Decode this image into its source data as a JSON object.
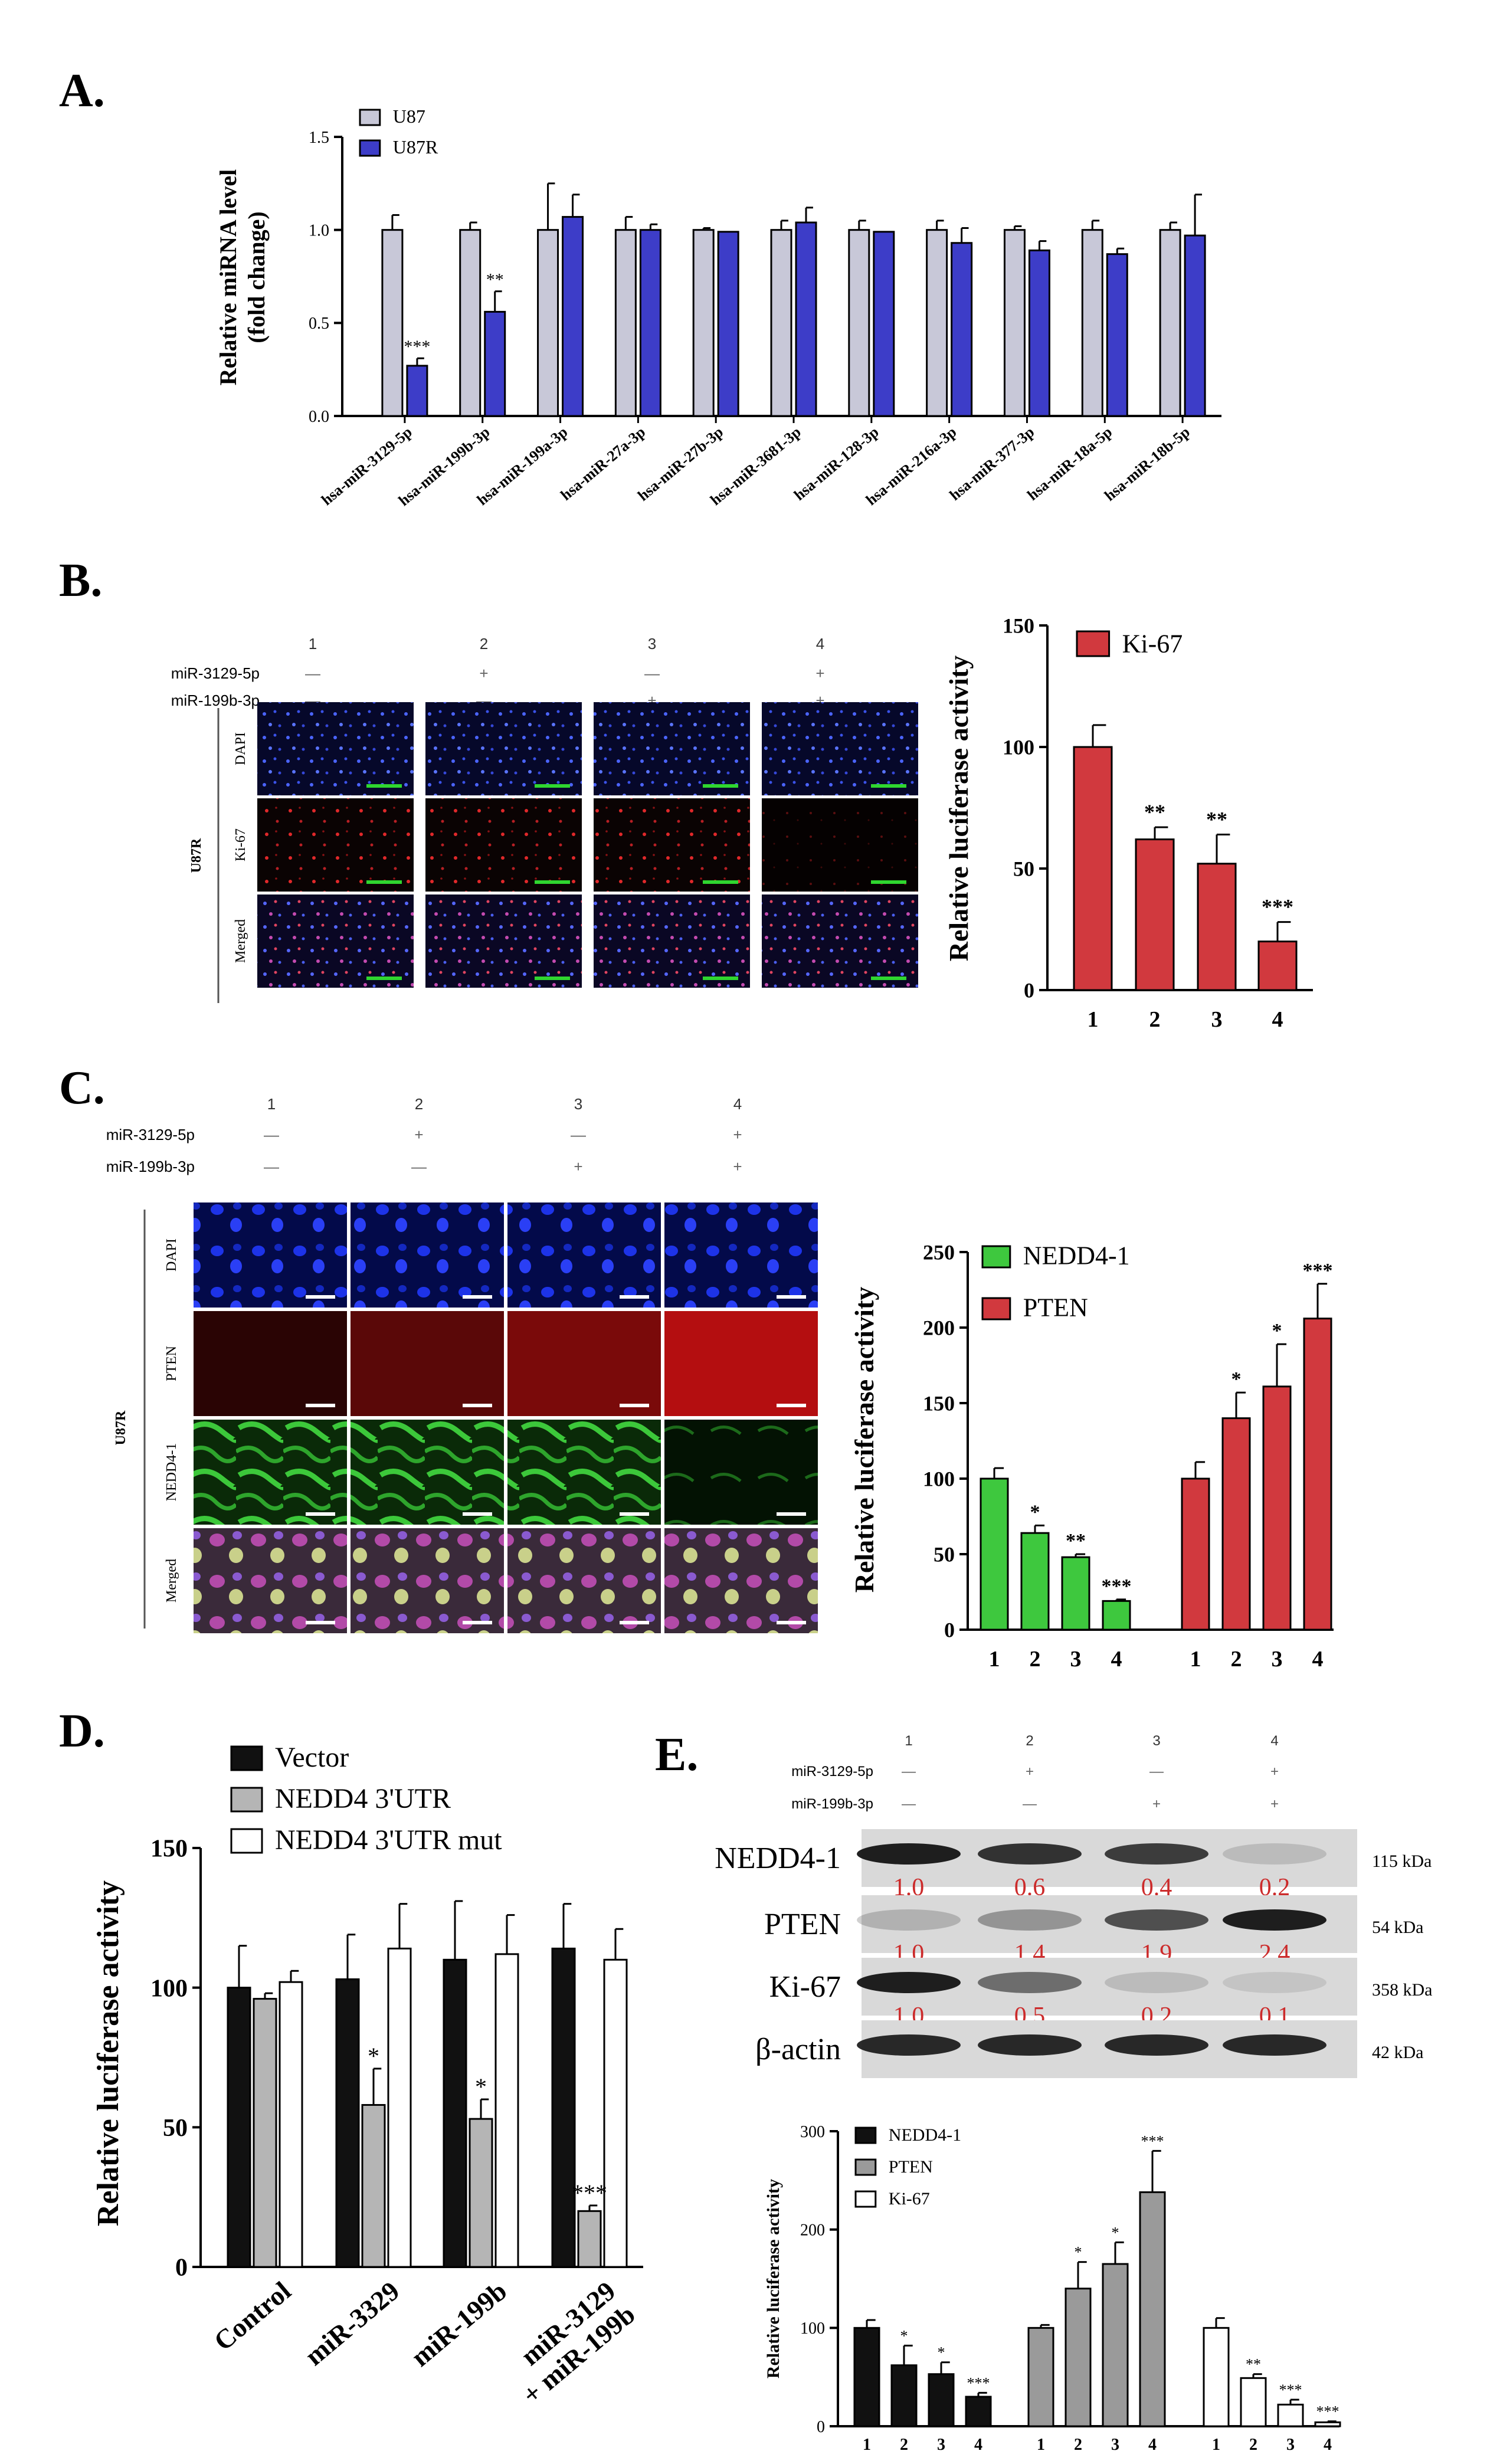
{
  "panels": {
    "A": {
      "letter": "A."
    },
    "B": {
      "letter": "B."
    },
    "C": {
      "letter": "C."
    },
    "D": {
      "letter": "D."
    },
    "E": {
      "letter": "E."
    }
  },
  "conditions": {
    "lane_numbers": [
      "1",
      "2",
      "3",
      "4"
    ],
    "row1_label": "miR-3129-5p",
    "row1_marks": [
      "—",
      "+",
      "—",
      "+"
    ],
    "row2_label": "miR-199b-3p",
    "row2_marks": [
      "—",
      "—",
      "+",
      "+"
    ]
  },
  "microscopy_B": {
    "cell_label": "U87R",
    "row_labels": [
      "DAPI",
      "Ki-67",
      "Merged"
    ]
  },
  "microscopy_C": {
    "cell_label": "U87R",
    "row_labels": [
      "DAPI",
      "PTEN",
      "NEDD4-1",
      "Merged"
    ]
  },
  "western_E": {
    "bands": [
      {
        "name": "NEDD4-1",
        "kda": "115 kDa",
        "quant": [
          "1.0",
          "0.6",
          "0.4",
          "0.2"
        ],
        "intensity": [
          0.95,
          0.85,
          0.8,
          0.15
        ]
      },
      {
        "name": "PTEN",
        "kda": "54 kDa",
        "quant": [
          "1.0",
          "1.4",
          "1.9",
          "2.4"
        ],
        "intensity": [
          0.2,
          0.35,
          0.7,
          0.95
        ]
      },
      {
        "name": "Ki-67",
        "kda": "358 kDa",
        "quant": [
          "1.0",
          "0.5",
          "0.2",
          "0.1"
        ],
        "intensity": [
          0.95,
          0.55,
          0.15,
          0.1
        ]
      },
      {
        "name": "β-actin",
        "kda": "42 kDa",
        "quant": [],
        "intensity": [
          0.9,
          0.9,
          0.9,
          0.9
        ]
      }
    ],
    "quant_color": "#cc2b2b"
  },
  "colors": {
    "u87": "#c8c8d8",
    "u87r": "#3d3dc8",
    "red": "#d1393e",
    "green": "#3ec83e",
    "black": "#111111",
    "gray": "#b5b5b5",
    "white": "#ffffff"
  },
  "chart_data": [
    {
      "id": "A",
      "type": "bar",
      "ylabel": "Relative miRNA level\n(fold change)",
      "ylim": [
        0,
        1.5
      ],
      "yticks": [
        "0.0",
        "0.5",
        "1.0",
        "1.5"
      ],
      "categories": [
        "hsa-miR-3129-5p",
        "hsa-miR-199b-3p",
        "hsa-miR-199a-3p",
        "hsa-miR-27a-3p",
        "hsa-miR-27b-3p",
        "hsa-miR-3681-3p",
        "hsa-miR-128-3p",
        "hsa-miR-216a-3p",
        "hsa-miR-377-3p",
        "hsa-miR-18a-5p",
        "hsa-miR-18b-5p"
      ],
      "series": [
        {
          "name": "U87",
          "values": [
            1.0,
            1.0,
            1.0,
            1.0,
            1.0,
            1.0,
            1.0,
            1.0,
            1.0,
            1.0,
            1.0
          ],
          "errors": [
            0.08,
            0.04,
            0.25,
            0.07,
            0.01,
            0.05,
            0.05,
            0.05,
            0.02,
            0.05,
            0.04
          ]
        },
        {
          "name": "U87R",
          "values": [
            0.27,
            0.56,
            1.07,
            1.0,
            0.99,
            1.04,
            0.99,
            0.93,
            0.89,
            0.87,
            0.97
          ],
          "errors": [
            0.04,
            0.11,
            0.12,
            0.03,
            0.0,
            0.08,
            0.0,
            0.08,
            0.05,
            0.03,
            0.22
          ]
        }
      ],
      "annotations": [
        {
          "category": "hsa-miR-3129-5p",
          "series": "U87R",
          "text": "***"
        },
        {
          "category": "hsa-miR-199b-3p",
          "series": "U87R",
          "text": "**"
        }
      ],
      "legend": "top-left"
    },
    {
      "id": "B",
      "type": "bar",
      "ylabel": "Relative luciferase activity",
      "ylim": [
        0,
        150
      ],
      "yticks": [
        "0",
        "50",
        "100",
        "150"
      ],
      "categories": [
        "1",
        "2",
        "3",
        "4"
      ],
      "series": [
        {
          "name": "Ki-67",
          "values": [
            100,
            62,
            52,
            20
          ],
          "errors": [
            9,
            5,
            12,
            8
          ]
        }
      ],
      "annotations": [
        {
          "category": "2",
          "text": "**"
        },
        {
          "category": "3",
          "text": "**"
        },
        {
          "category": "4",
          "text": "***"
        }
      ],
      "legend": "top-left"
    },
    {
      "id": "C",
      "type": "bar",
      "ylabel": "Relative luciferase activity",
      "ylim": [
        0,
        250
      ],
      "yticks": [
        "0",
        "50",
        "100",
        "150",
        "200",
        "250"
      ],
      "groups": [
        {
          "series": "NEDD4-1",
          "categories": [
            "1",
            "2",
            "3",
            "4"
          ],
          "values": [
            100,
            64,
            48,
            19
          ],
          "errors": [
            7,
            5,
            2,
            1
          ],
          "annotations": [
            "",
            "*",
            "**",
            "***"
          ]
        },
        {
          "series": "PTEN",
          "categories": [
            "1",
            "2",
            "3",
            "4"
          ],
          "values": [
            100,
            140,
            161,
            206
          ],
          "errors": [
            11,
            17,
            28,
            23
          ],
          "annotations": [
            "",
            "*",
            "*",
            "***"
          ]
        }
      ],
      "legend": "top-left"
    },
    {
      "id": "D",
      "type": "bar",
      "ylabel": "Relative luciferase activity",
      "ylim": [
        0,
        150
      ],
      "yticks": [
        "0",
        "50",
        "100",
        "150"
      ],
      "categories": [
        "Control",
        "miR-3329",
        "miR-199b",
        "miR-3129\n+ miR-199b"
      ],
      "series": [
        {
          "name": "Vector",
          "values": [
            100,
            103,
            110,
            114
          ],
          "errors": [
            15,
            16,
            21,
            16
          ]
        },
        {
          "name": "NEDD4 3'UTR",
          "values": [
            96,
            58,
            53,
            20
          ],
          "errors": [
            2,
            13,
            7,
            2
          ]
        },
        {
          "name": "NEDD4 3'UTR mut",
          "values": [
            102,
            114,
            112,
            110
          ],
          "errors": [
            4,
            16,
            14,
            11
          ]
        }
      ],
      "annotations": [
        {
          "category": "miR-3329",
          "series": "NEDD4 3'UTR",
          "text": "*"
        },
        {
          "category": "miR-199b",
          "series": "NEDD4 3'UTR",
          "text": "*"
        },
        {
          "category": "miR-3129\n+ miR-199b",
          "series": "NEDD4 3'UTR",
          "text": "***"
        }
      ],
      "legend": "top-left"
    },
    {
      "id": "E",
      "type": "bar",
      "ylabel": "Relative luciferase activity",
      "ylim": [
        0,
        300
      ],
      "yticks": [
        "0",
        "100",
        "200",
        "300"
      ],
      "groups": [
        {
          "series": "NEDD4-1",
          "categories": [
            "1",
            "2",
            "3",
            "4"
          ],
          "values": [
            100,
            62,
            53,
            30
          ],
          "errors": [
            8,
            20,
            12,
            4
          ],
          "annotations": [
            "",
            "*",
            "*",
            "***"
          ]
        },
        {
          "series": "PTEN",
          "categories": [
            "1",
            "2",
            "3",
            "4"
          ],
          "values": [
            100,
            140,
            165,
            238
          ],
          "errors": [
            3,
            27,
            22,
            42
          ],
          "annotations": [
            "",
            "*",
            "*",
            "***"
          ]
        },
        {
          "series": "Ki-67",
          "categories": [
            "1",
            "2",
            "3",
            "4"
          ],
          "values": [
            100,
            49,
            22,
            4
          ],
          "errors": [
            10,
            4,
            5,
            1
          ],
          "annotations": [
            "",
            "**",
            "***",
            "***"
          ]
        }
      ],
      "legend": "top-left"
    }
  ]
}
